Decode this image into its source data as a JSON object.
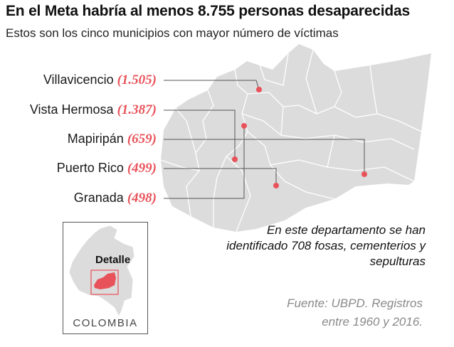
{
  "title": "En el Meta habría al menos 8.755 personas desaparecidas",
  "subtitle": "Estos son los cinco municipios con mayor número de víctimas",
  "municipalities": [
    {
      "name": "Villavicencio",
      "count": "(1.505)"
    },
    {
      "name": "Vista Hermosa",
      "count": "(1.387)"
    },
    {
      "name": "Mapiripán",
      "count": "(659)"
    },
    {
      "name": "Puerto Rico",
      "count": "(499)"
    },
    {
      "name": "Granada",
      "count": "(498)"
    }
  ],
  "note": "En este departamento se han identificado  708 fosas, cementerios y sepulturas",
  "source_line1": "Fuente: UBPD. Registros",
  "source_line2": "entre 1960 y 2016.",
  "inset": {
    "country": "COLOMBIA",
    "detail": "Detalle"
  },
  "colors": {
    "map_fill": "#dcdcdc",
    "border": "#ffffff",
    "marker": "#e8525a",
    "leader": "#555555"
  }
}
